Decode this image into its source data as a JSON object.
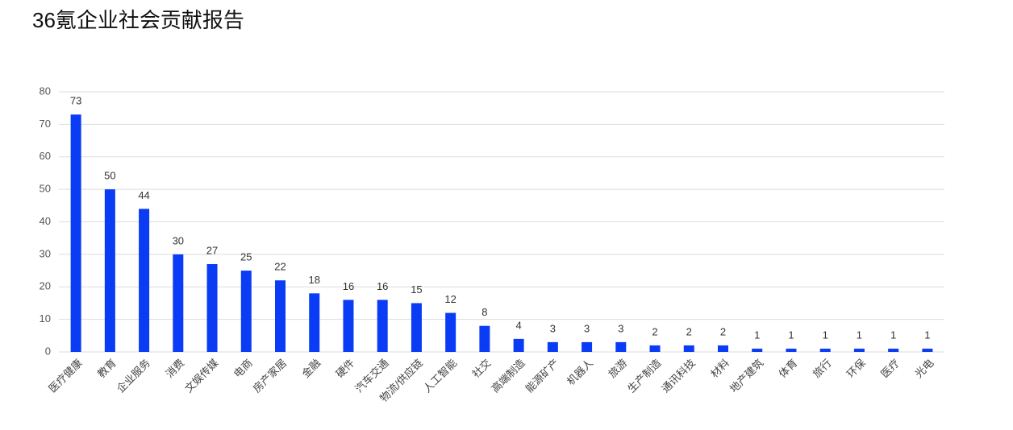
{
  "chart_data": {
    "type": "bar",
    "title": "36氪企业社会贡献报告",
    "categories": [
      "医疗健康",
      "教育",
      "企业服务",
      "消费",
      "文娱传媒",
      "电商",
      "房产家居",
      "金融",
      "硬件",
      "汽车交通",
      "物流/供应链",
      "人工智能",
      "社交",
      "高端制造",
      "能源矿产",
      "机器人",
      "旅游",
      "生产制造",
      "通讯科技",
      "材料",
      "地产建筑",
      "体育",
      "旅行",
      "环保",
      "医疗",
      "光电"
    ],
    "values": [
      73,
      50,
      44,
      30,
      27,
      25,
      22,
      18,
      16,
      16,
      15,
      12,
      8,
      4,
      3,
      3,
      3,
      2,
      2,
      2,
      1,
      1,
      1,
      1,
      1,
      1
    ],
    "color": "#0a3cf5",
    "ylim": [
      0,
      80
    ],
    "yticks": [
      0,
      10,
      20,
      30,
      40,
      50,
      60,
      70,
      80
    ],
    "grid": true
  }
}
